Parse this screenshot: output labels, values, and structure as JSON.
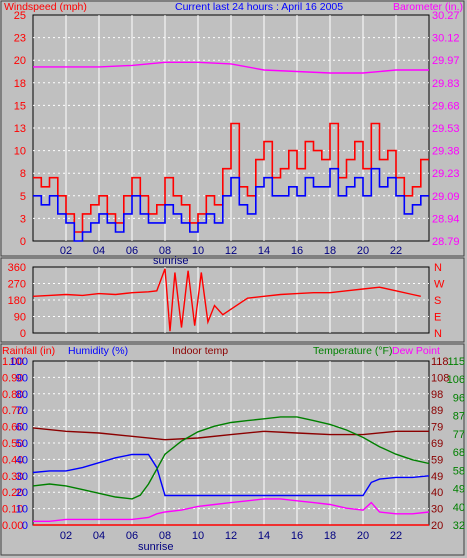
{
  "header": {
    "windspeed_label": "Windspeed (mph)",
    "title": "Current last 24 hours : April 16 2005",
    "barometer_label": "Barometer (in.)"
  },
  "lower_header": {
    "rainfall": "Rainfall (in)",
    "humidity": "Humidity (%)",
    "indoor": "Indoor temp",
    "temperature": "Temperature (°F)",
    "dewpoint": "Dew Point"
  },
  "sunrise_label": "sunrise",
  "colors": {
    "background": "#c0c0c0",
    "frame_dark": "#000000",
    "windspeed": "#ff0000",
    "gust": "#ff0000",
    "wind_avg": "#0000ff",
    "barometer": "#ff00ff",
    "direction": "#ff0000",
    "rainfall": "#ff0000",
    "humidity": "#0000ff",
    "indoor": "#8b0000",
    "temperature": "#008000",
    "dewpoint": "#ff00ff",
    "title": "#0000ff",
    "grid": "#ffffff"
  },
  "chart_data": [
    {
      "type": "line",
      "name_axis_left": "Windspeed (mph)",
      "name_axis_right": "Barometer (in.)",
      "x_ticks": [
        "02",
        "04",
        "06",
        "08",
        "10",
        "12",
        "14",
        "16",
        "18",
        "20",
        "22"
      ],
      "xlim": [
        0,
        24
      ],
      "ylim_left": [
        0,
        25
      ],
      "ylim_right": [
        28.79,
        30.27
      ],
      "left_ticks": [
        "0",
        "3",
        "5",
        "8",
        "10",
        "13",
        "15",
        "18",
        "20",
        "23",
        "25"
      ],
      "right_ticks": [
        "28.79",
        "28.94",
        "29.09",
        "29.23",
        "29.38",
        "29.53",
        "29.68",
        "29.83",
        "29.97",
        "30.12",
        "30.27"
      ],
      "series": [
        {
          "axis": "left",
          "color_key": "gust",
          "x": [
            0.0,
            0.5,
            1.0,
            1.5,
            2.0,
            2.5,
            3.0,
            3.5,
            4.0,
            4.5,
            5.0,
            5.5,
            6.0,
            6.5,
            7.0,
            7.5,
            8.0,
            8.5,
            9.0,
            9.5,
            10.0,
            10.5,
            11.0,
            11.5,
            12.0,
            12.5,
            13.0,
            13.5,
            14.0,
            14.5,
            15.0,
            15.5,
            16.0,
            16.5,
            17.0,
            17.5,
            18.0,
            18.5,
            19.0,
            19.5,
            20.0,
            20.5,
            21.0,
            21.5,
            22.0,
            22.5,
            23.0,
            23.5
          ],
          "values": [
            7,
            6,
            7,
            5,
            3,
            1,
            3,
            4,
            5,
            3,
            2,
            5,
            7,
            5,
            3,
            4,
            7,
            5,
            4,
            2,
            3,
            5,
            4,
            8,
            13,
            6,
            5,
            9,
            11,
            7,
            8,
            10,
            8,
            11,
            10,
            9,
            13,
            7,
            9,
            11,
            8,
            13,
            9,
            10,
            7,
            5,
            6,
            9
          ]
        },
        {
          "axis": "left",
          "color_key": "wind_avg",
          "x": [
            0.0,
            0.5,
            1.0,
            1.5,
            2.0,
            2.5,
            3.0,
            3.5,
            4.0,
            4.5,
            5.0,
            5.5,
            6.0,
            6.5,
            7.0,
            7.5,
            8.0,
            8.5,
            9.0,
            9.5,
            10.0,
            10.5,
            11.0,
            11.5,
            12.0,
            12.5,
            13.0,
            13.5,
            14.0,
            14.5,
            15.0,
            15.5,
            16.0,
            16.5,
            17.0,
            17.5,
            18.0,
            18.5,
            19.0,
            19.5,
            20.0,
            20.5,
            21.0,
            21.5,
            22.0,
            22.5,
            23.0,
            23.5
          ],
          "values": [
            5,
            4,
            5,
            3,
            2,
            0,
            1,
            2,
            3,
            2,
            1,
            3,
            5,
            3,
            2,
            2,
            4,
            3,
            2,
            1,
            2,
            3,
            2,
            5,
            7,
            4,
            3,
            6,
            7,
            5,
            5,
            6,
            5,
            7,
            6,
            6,
            8,
            5,
            6,
            7,
            5,
            8,
            6,
            7,
            5,
            3,
            4,
            5
          ]
        },
        {
          "axis": "right",
          "color_key": "barometer",
          "x": [
            0,
            2,
            4,
            6,
            8,
            10,
            12,
            14,
            16,
            18,
            20,
            22,
            24
          ],
          "values": [
            29.93,
            29.93,
            29.93,
            29.94,
            29.96,
            29.96,
            29.95,
            29.91,
            29.9,
            29.89,
            29.89,
            29.91,
            29.91
          ]
        }
      ]
    },
    {
      "type": "line",
      "name": "Wind direction",
      "x_ticks": [
        "02",
        "04",
        "06",
        "08",
        "10",
        "12",
        "14",
        "16",
        "18",
        "20",
        "22"
      ],
      "xlim": [
        0,
        24
      ],
      "ylim": [
        0,
        360
      ],
      "left_ticks": [
        "0",
        "90",
        "180",
        "270",
        "360"
      ],
      "right_ticks": [
        "N",
        "E",
        "S",
        "W",
        "N"
      ],
      "series": [
        {
          "color_key": "direction",
          "x": [
            0,
            1,
            2,
            3,
            4,
            5,
            6,
            7,
            7.5,
            8.0,
            8.3,
            8.6,
            9.0,
            9.4,
            9.8,
            10.2,
            10.6,
            11.0,
            11.5,
            12.0,
            13,
            14,
            15,
            16,
            17,
            18,
            19,
            20,
            21,
            22,
            23,
            23.5
          ],
          "values": [
            200,
            205,
            210,
            205,
            215,
            210,
            220,
            225,
            230,
            350,
            10,
            330,
            30,
            340,
            40,
            330,
            60,
            150,
            100,
            130,
            190,
            200,
            210,
            215,
            220,
            220,
            230,
            240,
            250,
            230,
            210,
            200
          ]
        }
      ]
    },
    {
      "type": "line",
      "x_ticks": [
        "02",
        "04",
        "06",
        "08",
        "10",
        "12",
        "14",
        "16",
        "18",
        "20",
        "22"
      ],
      "xlim": [
        0,
        24
      ],
      "rain_ticks": [
        "0.00",
        "0.10",
        "0.20",
        "0.30",
        "0.40",
        "0.50",
        "0.60",
        "0.70",
        "0.80",
        "0.90",
        "1.00"
      ],
      "humidity_ticks": [
        "0",
        "10",
        "20",
        "30",
        "40",
        "50",
        "60",
        "70",
        "80",
        "90",
        "100"
      ],
      "indoor_ticks": [
        "20",
        "30",
        "40",
        "49",
        "59",
        "69",
        "79",
        "89",
        "98",
        "108",
        "118"
      ],
      "temp_ticks": [
        "32",
        "40",
        "49",
        "58",
        "68",
        "77",
        "87",
        "96",
        "106",
        "115"
      ],
      "series": [
        {
          "name": "Rainfall (in)",
          "color_key": "rainfall",
          "x": [
            0,
            24
          ],
          "values": [
            0.0,
            0.0
          ],
          "scale": [
            0,
            1
          ]
        },
        {
          "name": "Humidity (%)",
          "color_key": "humidity",
          "x": [
            0,
            1,
            2,
            3,
            4,
            5,
            6,
            7,
            7.5,
            8,
            9,
            10,
            12,
            14,
            16,
            18,
            20,
            20.5,
            21,
            22,
            23,
            24
          ],
          "values": [
            32,
            33,
            33,
            35,
            38,
            41,
            43,
            43,
            35,
            18,
            18,
            18,
            18,
            18,
            18,
            18,
            18,
            26,
            28,
            29,
            29,
            30
          ],
          "scale": [
            0,
            100
          ]
        },
        {
          "name": "Indoor temp",
          "color_key": "indoor",
          "x": [
            0,
            2,
            4,
            6,
            8,
            10,
            12,
            14,
            16,
            18,
            20,
            22,
            24
          ],
          "values": [
            78,
            76,
            75,
            73,
            71,
            72,
            74,
            76,
            75,
            74,
            74,
            76,
            76
          ],
          "scale": [
            20,
            118
          ]
        },
        {
          "name": "Temperature (°F)",
          "color_key": "temperature",
          "x": [
            0,
            1,
            2,
            3,
            4,
            5,
            6,
            6.5,
            7,
            7.5,
            8,
            9,
            10,
            11,
            12,
            13,
            14,
            15,
            16,
            17,
            18,
            19,
            20,
            21,
            22,
            23,
            24
          ],
          "values": [
            53,
            54,
            53,
            51,
            49,
            47,
            46,
            48,
            54,
            62,
            70,
            77,
            82,
            85,
            87,
            88,
            89,
            90,
            90,
            88,
            86,
            83,
            79,
            74,
            70,
            67,
            65
          ],
          "scale": [
            32,
            120
          ]
        },
        {
          "name": "Dew Point",
          "color_key": "dewpoint",
          "x": [
            0,
            1,
            2,
            3,
            4,
            5,
            6,
            7,
            7.5,
            8,
            9,
            10,
            11,
            12,
            13,
            14,
            15,
            16,
            17,
            18,
            19,
            20,
            20.5,
            21,
            22,
            23,
            24
          ],
          "values": [
            34,
            34,
            35,
            35,
            35,
            35,
            35,
            36,
            38,
            39,
            40,
            42,
            43,
            44,
            45,
            46,
            46,
            45,
            44,
            43,
            41,
            40,
            44,
            39,
            38,
            38,
            39
          ],
          "scale": [
            32,
            120
          ]
        }
      ]
    }
  ]
}
